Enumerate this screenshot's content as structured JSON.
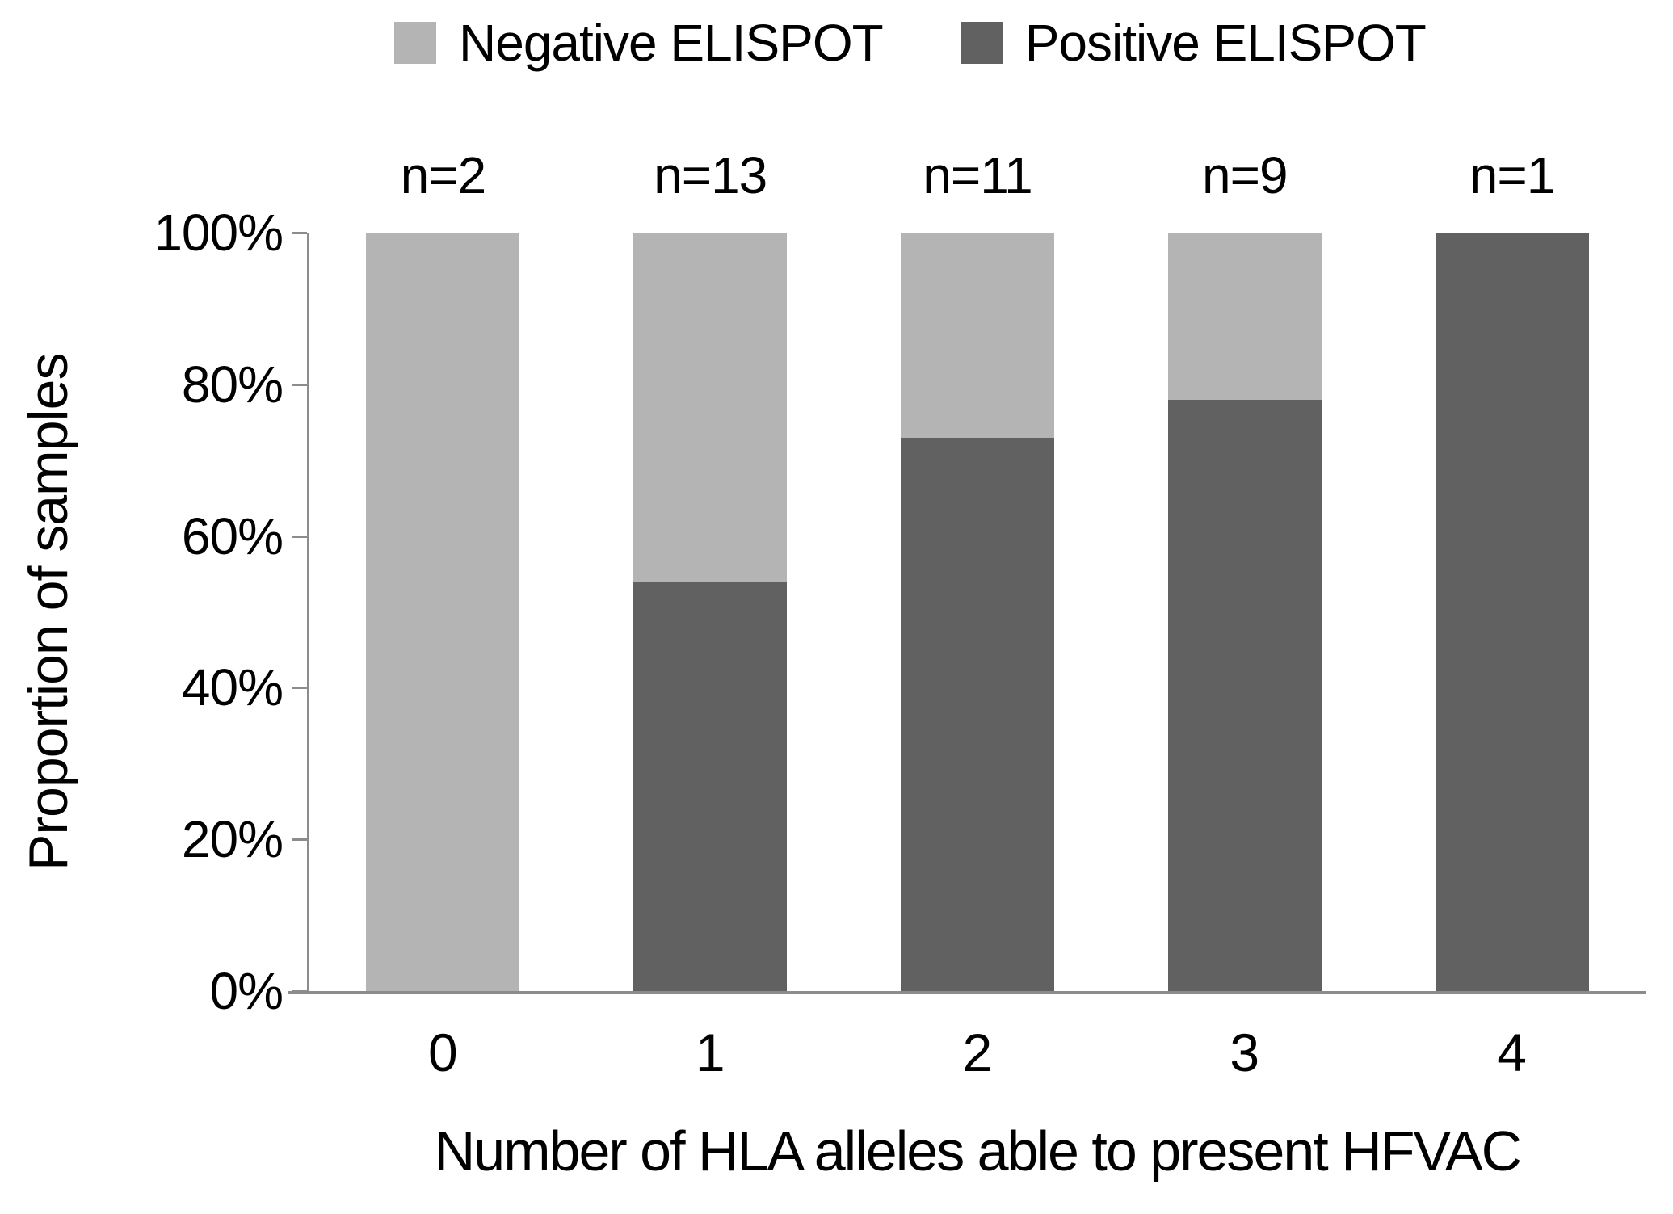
{
  "legend": {
    "items": [
      {
        "label": "Negative ELISPOT",
        "color": "#b4b4b4"
      },
      {
        "label": "Positive ELISPOT",
        "color": "#616161"
      }
    ]
  },
  "chart_data": {
    "type": "bar",
    "stacked": true,
    "title": "",
    "xlabel": "Number of HLA alleles able to present HFVAC",
    "ylabel": "Proportion of samples",
    "categories": [
      "0",
      "1",
      "2",
      "3",
      "4"
    ],
    "n_labels": [
      "n=2",
      "n=13",
      "n=11",
      "n=9",
      "n=1"
    ],
    "series": [
      {
        "name": "Positive ELISPOT",
        "color": "#616161",
        "values": [
          0,
          54,
          73,
          78,
          100
        ]
      },
      {
        "name": "Negative ELISPOT",
        "color": "#b4b4b4",
        "values": [
          100,
          46,
          27,
          22,
          0
        ]
      }
    ],
    "ylim": [
      0,
      100
    ],
    "yticks": [
      "0%",
      "20%",
      "40%",
      "60%",
      "80%",
      "100%"
    ],
    "legend_position": "top",
    "grid": false
  },
  "colors": {
    "axis": "#8c8c8c",
    "text": "#000000",
    "background": "#ffffff"
  }
}
